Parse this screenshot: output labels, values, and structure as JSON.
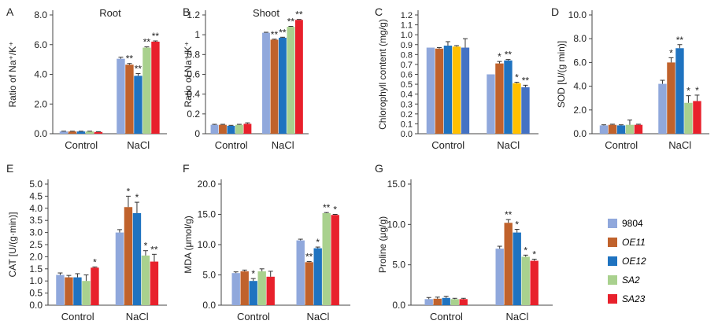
{
  "groups": [
    "Control",
    "NaCl"
  ],
  "legend": {
    "items": [
      {
        "label": "9804",
        "color": "#90a8dc",
        "italic": false
      },
      {
        "label": "OE11",
        "color": "#c0622c",
        "italic": true
      },
      {
        "label": "OE12",
        "color": "#1f73c0",
        "italic": true
      },
      {
        "label": "SA2",
        "color": "#a9d18e",
        "italic": true
      },
      {
        "label": "SA23",
        "color": "#e8212c",
        "italic": true
      }
    ]
  },
  "chart_data": [
    {
      "panel": "A",
      "title": "Root",
      "type": "bar",
      "ylabel": "Ratio of Na⁺/K⁺",
      "ylim": [
        0,
        8
      ],
      "ticks": [
        "0.0",
        "2.0",
        "4.0",
        "6.0",
        "8.0"
      ],
      "tick_values": [
        0,
        2,
        4,
        6,
        8
      ],
      "categories": [
        "Control",
        "NaCl"
      ],
      "colors": [
        "#90a8dc",
        "#c0622c",
        "#1f73c0",
        "#a9d18e",
        "#e8212c"
      ],
      "series": [
        {
          "name": "9804",
          "values": [
            0.15,
            5.05
          ],
          "errors": [
            0.02,
            0.1
          ],
          "sig": [
            "",
            ""
          ]
        },
        {
          "name": "OE11",
          "values": [
            0.15,
            4.65
          ],
          "errors": [
            0.02,
            0.08
          ],
          "sig": [
            "",
            "**"
          ]
        },
        {
          "name": "OE12",
          "values": [
            0.15,
            3.9
          ],
          "errors": [
            0.02,
            0.15
          ],
          "sig": [
            "",
            "**"
          ]
        },
        {
          "name": "SA2",
          "values": [
            0.15,
            5.8
          ],
          "errors": [
            0.02,
            0.05
          ],
          "sig": [
            "",
            "**"
          ]
        },
        {
          "name": "SA23",
          "values": [
            0.12,
            6.2
          ],
          "errors": [
            0.02,
            0.05
          ],
          "sig": [
            "",
            "**"
          ]
        }
      ]
    },
    {
      "panel": "B",
      "title": "Shoot",
      "type": "bar",
      "ylabel": "Ratio of Na⁺/K⁺",
      "ylim": [
        0,
        1.2
      ],
      "ticks": [
        "0",
        "0.2",
        "0.4",
        "0.6",
        "0.8",
        "1",
        "1.2"
      ],
      "tick_values": [
        0,
        0.2,
        0.4,
        0.6,
        0.8,
        1,
        1.2
      ],
      "categories": [
        "Control",
        "NaCl"
      ],
      "colors": [
        "#90a8dc",
        "#c0622c",
        "#1f73c0",
        "#a9d18e",
        "#e8212c"
      ],
      "series": [
        {
          "name": "9804",
          "values": [
            0.09,
            1.02
          ],
          "errors": [
            0.005,
            0.005
          ],
          "sig": [
            "",
            ""
          ]
        },
        {
          "name": "OE11",
          "values": [
            0.09,
            0.95
          ],
          "errors": [
            0.005,
            0.005
          ],
          "sig": [
            "",
            "**"
          ]
        },
        {
          "name": "OE12",
          "values": [
            0.08,
            0.97
          ],
          "errors": [
            0.005,
            0.005
          ],
          "sig": [
            "",
            "**"
          ]
        },
        {
          "name": "SA2",
          "values": [
            0.09,
            1.08
          ],
          "errors": [
            0.005,
            0.005
          ],
          "sig": [
            "",
            "**"
          ]
        },
        {
          "name": "SA23",
          "values": [
            0.1,
            1.15
          ],
          "errors": [
            0.01,
            0.005
          ],
          "sig": [
            "",
            "**"
          ]
        }
      ]
    },
    {
      "panel": "C",
      "title": "",
      "type": "bar",
      "ylabel": "Chlorophyll content (mg/g)",
      "ylim": [
        0,
        1.2
      ],
      "ticks": [
        "0.0",
        "0.1",
        "0.2",
        "0.3",
        "0.4",
        "0.5",
        "0.6",
        "0.7",
        "0.8",
        "0.9",
        "1.0",
        "1.1",
        "1.2"
      ],
      "tick_values": [
        0,
        0.1,
        0.2,
        0.3,
        0.4,
        0.5,
        0.6,
        0.7,
        0.8,
        0.9,
        1.0,
        1.1,
        1.2
      ],
      "categories": [
        "Control",
        "NaCl"
      ],
      "colors": [
        "#90a8dc",
        "#c0622c",
        "#1f73c0",
        "#ffc000",
        "#4472c4"
      ],
      "series": [
        {
          "name": "9804",
          "values": [
            0.87,
            0.6
          ],
          "errors": [
            0.0,
            0.0
          ],
          "sig": [
            "",
            ""
          ]
        },
        {
          "name": "OE11",
          "values": [
            0.86,
            0.71
          ],
          "errors": [
            0.01,
            0.02
          ],
          "sig": [
            "",
            "*"
          ]
        },
        {
          "name": "OE12",
          "values": [
            0.89,
            0.74
          ],
          "errors": [
            0.04,
            0.01
          ],
          "sig": [
            "",
            "**"
          ]
        },
        {
          "name": "SA2",
          "values": [
            0.88,
            0.51
          ],
          "errors": [
            0.01,
            0.01
          ],
          "sig": [
            "",
            "*"
          ]
        },
        {
          "name": "SA23",
          "values": [
            0.87,
            0.47
          ],
          "errors": [
            0.09,
            0.02
          ],
          "sig": [
            "",
            "**"
          ]
        }
      ]
    },
    {
      "panel": "D",
      "title": "",
      "type": "bar",
      "ylabel": "SOD [U/(g min)]",
      "ylim": [
        0,
        10
      ],
      "ticks": [
        "0.0",
        "2.0",
        "4.0",
        "6.0",
        "8.0",
        "10.0"
      ],
      "tick_values": [
        0,
        2,
        4,
        6,
        8,
        10
      ],
      "categories": [
        "Control",
        "NaCl"
      ],
      "colors": [
        "#90a8dc",
        "#c0622c",
        "#1f73c0",
        "#a9d18e",
        "#e8212c"
      ],
      "series": [
        {
          "name": "9804",
          "values": [
            0.7,
            4.2
          ],
          "errors": [
            0.05,
            0.3
          ],
          "sig": [
            "",
            ""
          ]
        },
        {
          "name": "OE11",
          "values": [
            0.75,
            6.0
          ],
          "errors": [
            0.05,
            0.4
          ],
          "sig": [
            "",
            "*"
          ]
        },
        {
          "name": "OE12",
          "values": [
            0.7,
            7.2
          ],
          "errors": [
            0.05,
            0.3
          ],
          "sig": [
            "",
            "**"
          ]
        },
        {
          "name": "SA2",
          "values": [
            0.75,
            2.6
          ],
          "errors": [
            0.4,
            0.6
          ],
          "sig": [
            "",
            "*"
          ]
        },
        {
          "name": "SA23",
          "values": [
            0.75,
            2.75
          ],
          "errors": [
            0.05,
            0.5
          ],
          "sig": [
            "",
            "*"
          ]
        }
      ]
    },
    {
      "panel": "E",
      "title": "",
      "type": "bar",
      "ylabel": "CAT [U/(g·min)]",
      "ylim": [
        0,
        5
      ],
      "ticks": [
        "0.0",
        "0.5",
        "1.0",
        "1.5",
        "2.0",
        "2.5",
        "3.0",
        "3.5",
        "4.0",
        "4.5",
        "5.0"
      ],
      "tick_values": [
        0,
        0.5,
        1,
        1.5,
        2,
        2.5,
        3,
        3.5,
        4,
        4.5,
        5
      ],
      "categories": [
        "Control",
        "NaCl"
      ],
      "colors": [
        "#90a8dc",
        "#c0622c",
        "#1f73c0",
        "#a9d18e",
        "#e8212c"
      ],
      "series": [
        {
          "name": "9804",
          "values": [
            1.25,
            3.0
          ],
          "errors": [
            0.08,
            0.12
          ],
          "sig": [
            "",
            ""
          ]
        },
        {
          "name": "OE11",
          "values": [
            1.15,
            4.05
          ],
          "errors": [
            0.08,
            0.45
          ],
          "sig": [
            "",
            "*"
          ]
        },
        {
          "name": "OE12",
          "values": [
            1.15,
            3.8
          ],
          "errors": [
            0.15,
            0.45
          ],
          "sig": [
            "",
            "*"
          ]
        },
        {
          "name": "SA2",
          "values": [
            1.0,
            2.05
          ],
          "errors": [
            0.25,
            0.2
          ],
          "sig": [
            "",
            "*"
          ]
        },
        {
          "name": "SA23",
          "values": [
            1.55,
            1.8
          ],
          "errors": [
            0.03,
            0.3
          ],
          "sig": [
            "*",
            "**"
          ]
        }
      ]
    },
    {
      "panel": "F",
      "title": "",
      "type": "bar",
      "ylabel": "MDA (μmol/g)",
      "ylim": [
        0,
        20
      ],
      "ticks": [
        "0.0",
        "5.0",
        "10.0",
        "15.0",
        "20.0"
      ],
      "tick_values": [
        0,
        5,
        10,
        15,
        20
      ],
      "categories": [
        "Control",
        "NaCl"
      ],
      "colors": [
        "#90a8dc",
        "#c0622c",
        "#1f73c0",
        "#a9d18e",
        "#e8212c"
      ],
      "series": [
        {
          "name": "9804",
          "values": [
            5.3,
            10.7
          ],
          "errors": [
            0.2,
            0.2
          ],
          "sig": [
            "",
            ""
          ]
        },
        {
          "name": "OE11",
          "values": [
            5.6,
            7.1
          ],
          "errors": [
            0.2,
            0.1
          ],
          "sig": [
            "",
            "**"
          ]
        },
        {
          "name": "OE12",
          "values": [
            4.0,
            9.4
          ],
          "errors": [
            0.4,
            0.2
          ],
          "sig": [
            "*",
            "*"
          ]
        },
        {
          "name": "SA2",
          "values": [
            5.6,
            15.2
          ],
          "errors": [
            0.4,
            0.1
          ],
          "sig": [
            "",
            "**"
          ]
        },
        {
          "name": "SA23",
          "values": [
            4.7,
            14.9
          ],
          "errors": [
            0.9,
            0.1
          ],
          "sig": [
            "",
            "*"
          ]
        }
      ]
    },
    {
      "panel": "G",
      "title": "",
      "type": "bar",
      "ylabel": "Proline (μg/g)",
      "ylim": [
        0,
        15
      ],
      "ticks": [
        "0.0",
        "5.0",
        "10.0",
        "15.0"
      ],
      "tick_values": [
        0,
        5,
        10,
        15
      ],
      "categories": [
        "Control",
        "NaCl"
      ],
      "colors": [
        "#90a8dc",
        "#c0622c",
        "#1f73c0",
        "#a9d18e",
        "#e8212c"
      ],
      "series": [
        {
          "name": "9804",
          "values": [
            0.75,
            7.0
          ],
          "errors": [
            0.2,
            0.3
          ],
          "sig": [
            "",
            ""
          ]
        },
        {
          "name": "OE11",
          "values": [
            0.8,
            10.2
          ],
          "errors": [
            0.2,
            0.4
          ],
          "sig": [
            "",
            "**"
          ]
        },
        {
          "name": "OE12",
          "values": [
            0.9,
            9.0
          ],
          "errors": [
            0.2,
            0.4
          ],
          "sig": [
            "",
            "*"
          ]
        },
        {
          "name": "SA2",
          "values": [
            0.75,
            6.0
          ],
          "errors": [
            0.1,
            0.2
          ],
          "sig": [
            "",
            "*"
          ]
        },
        {
          "name": "SA23",
          "values": [
            0.75,
            5.5
          ],
          "errors": [
            0.1,
            0.2
          ],
          "sig": [
            "",
            "*"
          ]
        }
      ]
    }
  ]
}
